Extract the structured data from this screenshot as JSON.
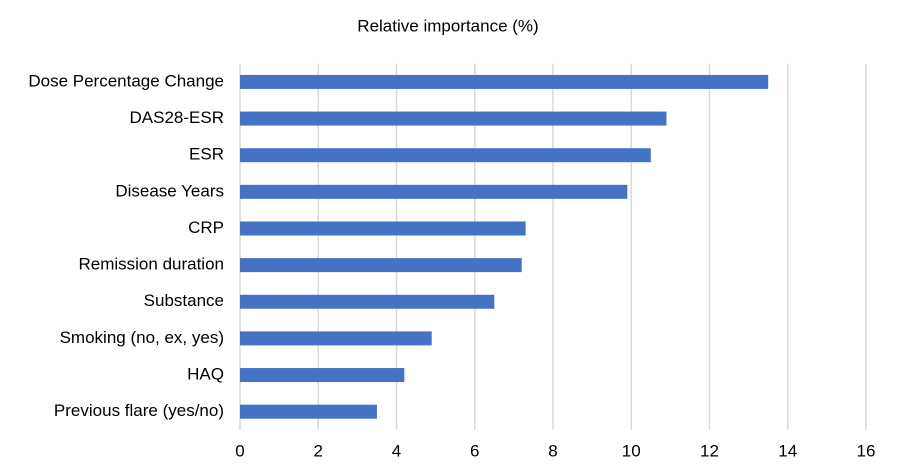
{
  "chart_data": {
    "type": "bar",
    "orientation": "horizontal",
    "title": "Relative importance (%)",
    "categories": [
      "Dose Percentage Change",
      "DAS28-ESR",
      "ESR",
      "Disease Years",
      "CRP",
      "Remission duration",
      "Substance",
      "Smoking (no, ex, yes)",
      "HAQ",
      "Previous flare (yes/no)"
    ],
    "values": [
      13.5,
      10.9,
      10.5,
      9.9,
      7.3,
      7.2,
      6.5,
      4.9,
      4.2,
      3.5
    ],
    "color": "#4472c4",
    "xlim": [
      0,
      16
    ],
    "xticks": [
      0,
      2,
      4,
      6,
      8,
      10,
      12,
      14,
      16
    ],
    "grid": true
  }
}
